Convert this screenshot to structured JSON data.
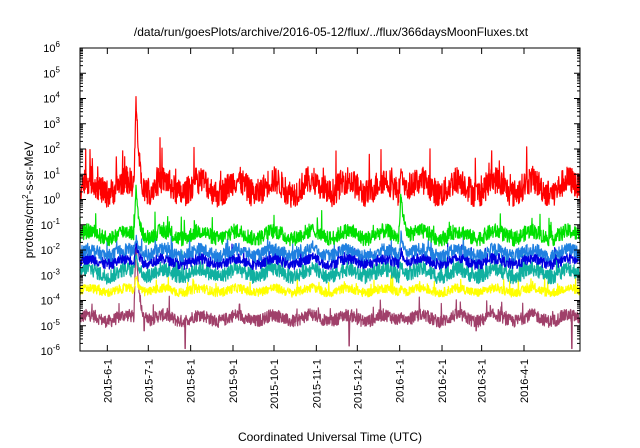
{
  "chart_data": {
    "type": "line",
    "title": "/data/run/goesPlots/archive/2016-05-12/flux/../flux/366daysMoonFluxes.txt",
    "xlabel": "Coordinated Universal Time (UTC)",
    "ylabel_main": "protons/cm",
    "ylabel_sup": "2",
    "ylabel_rest": "-s-sr-MeV",
    "yscale": "log",
    "ylim_exp": [
      -6,
      6
    ],
    "y_ticks": [
      {
        "base": "10",
        "exp": "-6"
      },
      {
        "base": "10",
        "exp": "-5"
      },
      {
        "base": "10",
        "exp": "-4"
      },
      {
        "base": "10",
        "exp": "-3"
      },
      {
        "base": "10",
        "exp": "-2"
      },
      {
        "base": "10",
        "exp": "-1"
      },
      {
        "base": "10",
        "exp": "0"
      },
      {
        "base": "10",
        "exp": "1"
      },
      {
        "base": "10",
        "exp": "2"
      },
      {
        "base": "10",
        "exp": "3"
      },
      {
        "base": "10",
        "exp": "4"
      },
      {
        "base": "10",
        "exp": "5"
      },
      {
        "base": "10",
        "exp": "6"
      }
    ],
    "xlim": [
      "2015-05-12",
      "2016-05-12"
    ],
    "x_ticks": [
      {
        "label": "2015-6-1",
        "date": "2015-06-01"
      },
      {
        "label": "2015-7-1",
        "date": "2015-07-01"
      },
      {
        "label": "2015-8-1",
        "date": "2015-08-01"
      },
      {
        "label": "2015-9-1",
        "date": "2015-09-01"
      },
      {
        "label": "2015-10-1",
        "date": "2015-10-01"
      },
      {
        "label": "2015-11-1",
        "date": "2015-11-01"
      },
      {
        "label": "2015-12-1",
        "date": "2015-12-01"
      },
      {
        "label": "2016-1-1",
        "date": "2016-01-01"
      },
      {
        "label": "2016-2-1",
        "date": "2016-02-01"
      },
      {
        "label": "2016-3-1",
        "date": "2016-03-01"
      },
      {
        "label": "2016-4-1",
        "date": "2016-04-01"
      }
    ],
    "series": [
      {
        "color": "#a0406a",
        "baseline_exp": -4.7,
        "noise": 0.25
      },
      {
        "color": "#ffff00",
        "baseline_exp": -3.6,
        "noise": 0.18
      },
      {
        "color": "#10b0a0",
        "baseline_exp": -2.9,
        "noise": 0.3
      },
      {
        "color": "#0000e0",
        "baseline_exp": -2.45,
        "noise": 0.22
      },
      {
        "color": "#2080e0",
        "baseline_exp": -2.1,
        "noise": 0.25
      },
      {
        "color": "#00e000",
        "baseline_exp": -1.4,
        "noise": 0.3
      },
      {
        "color": "#ff0000",
        "baseline_exp": 0.5,
        "noise": 0.55
      }
    ],
    "events": [
      {
        "date": "2015-06-22",
        "peak_exp": [
          -1.5,
          -3.0,
          -2.2,
          -1.7,
          -1.5,
          0.5,
          4.0
        ]
      },
      {
        "date": "2015-10-29",
        "peak_exp": [
          -4.7,
          -3.5,
          -2.7,
          -2.2,
          -1.8,
          -1.2,
          0.4
        ]
      },
      {
        "date": "2016-01-02",
        "peak_exp": [
          -4.6,
          -3.5,
          -2.5,
          -2.0,
          -1.4,
          0.3,
          1.2
        ]
      }
    ],
    "dips": [
      {
        "date": "2015-06-28",
        "exp": -5.2
      },
      {
        "date": "2015-07-28",
        "exp": -5.9
      },
      {
        "date": "2015-11-25",
        "exp": -5.8
      },
      {
        "date": "2016-02-26",
        "exp": -5.2
      },
      {
        "date": "2016-05-06",
        "exp": -5.9
      }
    ],
    "grid": false,
    "legend": "none"
  }
}
